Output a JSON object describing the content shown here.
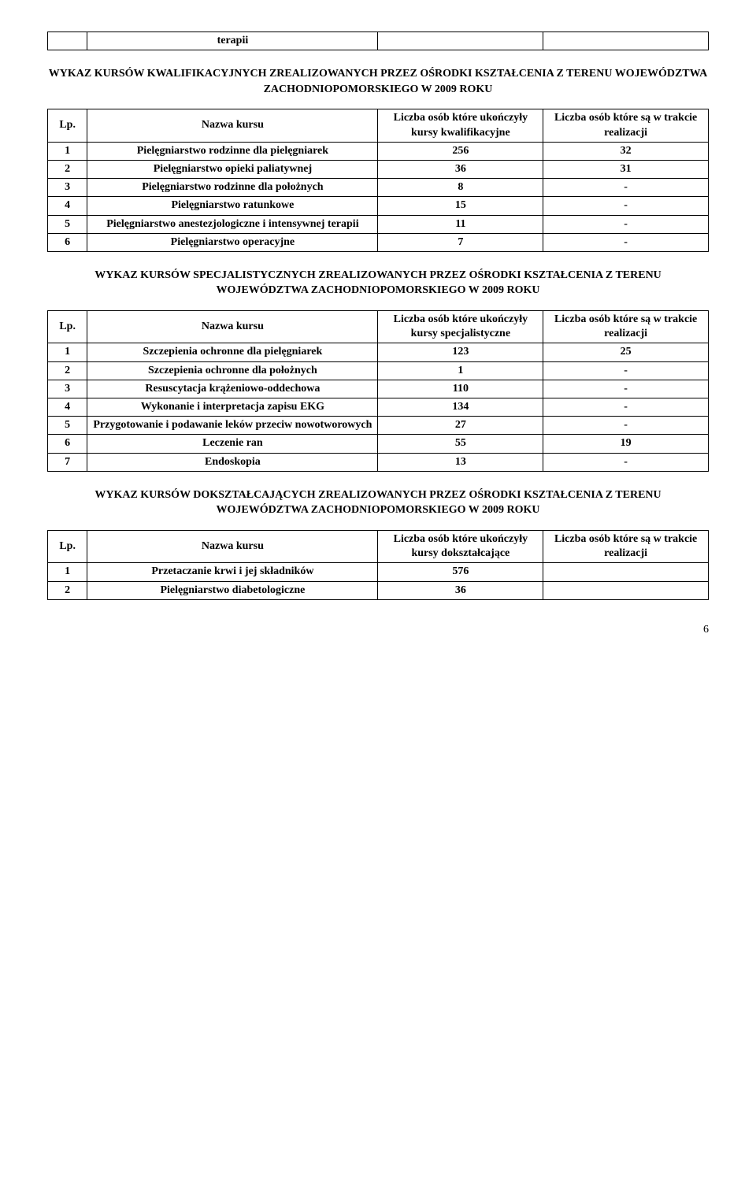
{
  "topTable": {
    "rows": [
      [
        "",
        "terapii",
        "",
        ""
      ]
    ]
  },
  "section1": {
    "title": "WYKAZ KURSÓW KWALIFIKACYJNYCH ZREALIZOWANYCH PRZEZ OŚRODKI KSZTAŁCENIA Z TERENU WOJEWÓDZTWA ZACHODNIOPOMORSKIEGO W 2009 ROKU",
    "header": {
      "lp": "Lp.",
      "name": "Nazwa kursu",
      "col1": "Liczba osób które ukończyły kursy kwalifikacyjne",
      "col2": "Liczba osób które są w trakcie realizacji"
    },
    "rows": [
      {
        "lp": "1",
        "name": "Pielęgniarstwo rodzinne dla pielęgniarek",
        "c1": "256",
        "c2": "32"
      },
      {
        "lp": "2",
        "name": "Pielęgniarstwo opieki paliatywnej",
        "c1": "36",
        "c2": "31"
      },
      {
        "lp": "3",
        "name": "Pielęgniarstwo rodzinne dla położnych",
        "c1": "8",
        "c2": "-"
      },
      {
        "lp": "4",
        "name": "Pielęgniarstwo ratunkowe",
        "c1": "15",
        "c2": "-"
      },
      {
        "lp": "5",
        "name": "Pielęgniarstwo anestezjologiczne i intensywnej terapii",
        "c1": "11",
        "c2": "-"
      },
      {
        "lp": "6",
        "name": "Pielęgniarstwo operacyjne",
        "c1": "7",
        "c2": "-"
      }
    ]
  },
  "section2": {
    "title": "WYKAZ KURSÓW SPECJALISTYCZNYCH ZREALIZOWANYCH PRZEZ OŚRODKI KSZTAŁCENIA Z TERENU WOJEWÓDZTWA ZACHODNIOPOMORSKIEGO W 2009 ROKU",
    "header": {
      "lp": "Lp.",
      "name": "Nazwa kursu",
      "col1": "Liczba osób które ukończyły kursy specjalistyczne",
      "col2": "Liczba osób które są w trakcie realizacji"
    },
    "rows": [
      {
        "lp": "1",
        "name": "Szczepienia ochronne dla pielęgniarek",
        "c1": "123",
        "c2": "25"
      },
      {
        "lp": "2",
        "name": "Szczepienia ochronne dla położnych",
        "c1": "1",
        "c2": "-"
      },
      {
        "lp": "3",
        "name": "Resuscytacja krążeniowo-oddechowa",
        "c1": "110",
        "c2": "-"
      },
      {
        "lp": "4",
        "name": "Wykonanie i interpretacja zapisu EKG",
        "c1": "134",
        "c2": "-"
      },
      {
        "lp": "5",
        "name": "Przygotowanie i podawanie leków przeciw nowotworowych",
        "c1": "27",
        "c2": "-"
      },
      {
        "lp": "6",
        "name": "Leczenie ran",
        "c1": "55",
        "c2": "19"
      },
      {
        "lp": "7",
        "name": "Endoskopia",
        "c1": "13",
        "c2": "-"
      }
    ]
  },
  "section3": {
    "title": "WYKAZ KURSÓW DOKSZTAŁCAJĄCYCH  ZREALIZOWANYCH PRZEZ OŚRODKI KSZTAŁCENIA Z TERENU WOJEWÓDZTWA ZACHODNIOPOMORSKIEGO W 2009 ROKU",
    "header": {
      "lp": "Lp.",
      "name": "Nazwa kursu",
      "col1": "Liczba osób które ukończyły kursy dokształcające",
      "col2": "Liczba osób które są w trakcie realizacji"
    },
    "rows": [
      {
        "lp": "1",
        "name": "Przetaczanie krwi i jej składników",
        "c1": "576",
        "c2": ""
      },
      {
        "lp": "2",
        "name": "Pielęgniarstwo diabetologiczne",
        "c1": "36",
        "c2": ""
      }
    ]
  },
  "pageNumber": "6"
}
